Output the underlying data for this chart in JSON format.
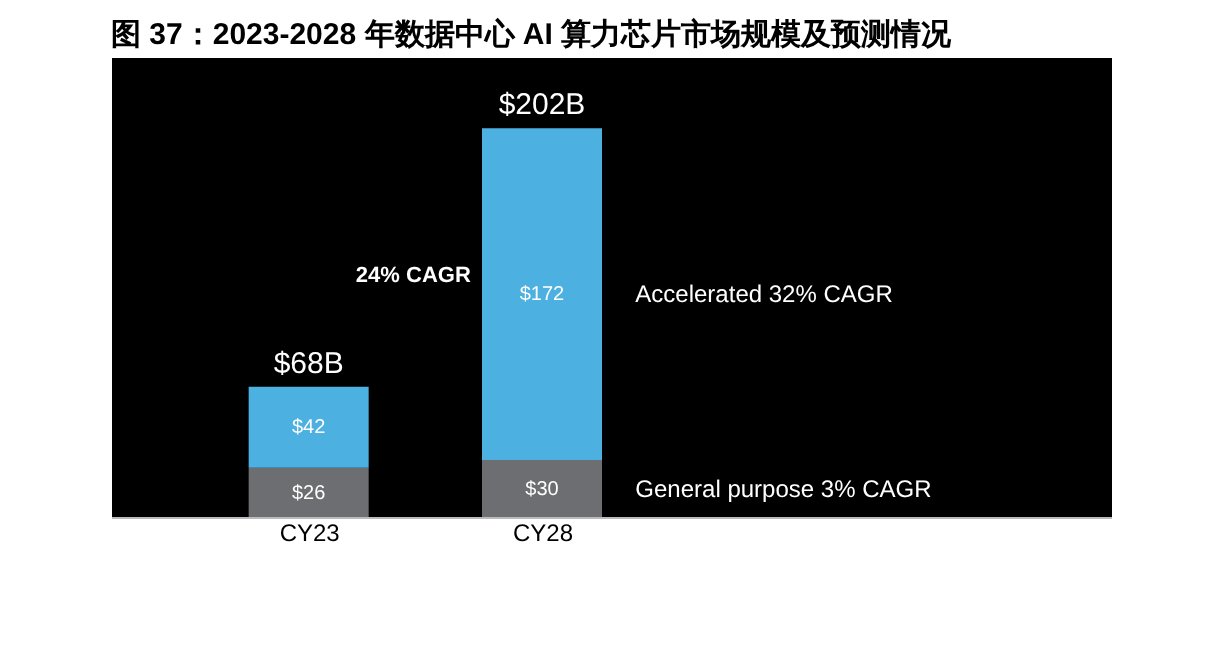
{
  "chart_data": {
    "type": "bar",
    "title": "图 37：2023-2028 年数据中心 AI 算力芯片市场规模及预测情况",
    "categories": [
      "CY23",
      "CY28"
    ],
    "stacked": true,
    "series": [
      {
        "name": "General purpose 3% CAGR",
        "color": "#6d6e71",
        "values": [
          26,
          30
        ],
        "value_labels": [
          "$26",
          "$30"
        ]
      },
      {
        "name": "Accelerated 32% CAGR",
        "color": "#4cb0e0",
        "values": [
          42,
          172
        ],
        "value_labels": [
          "$42",
          "$172"
        ]
      }
    ],
    "totals": [
      "$68B",
      "$202B"
    ],
    "annotations": [
      "24% CAGR"
    ],
    "grid": false
  }
}
